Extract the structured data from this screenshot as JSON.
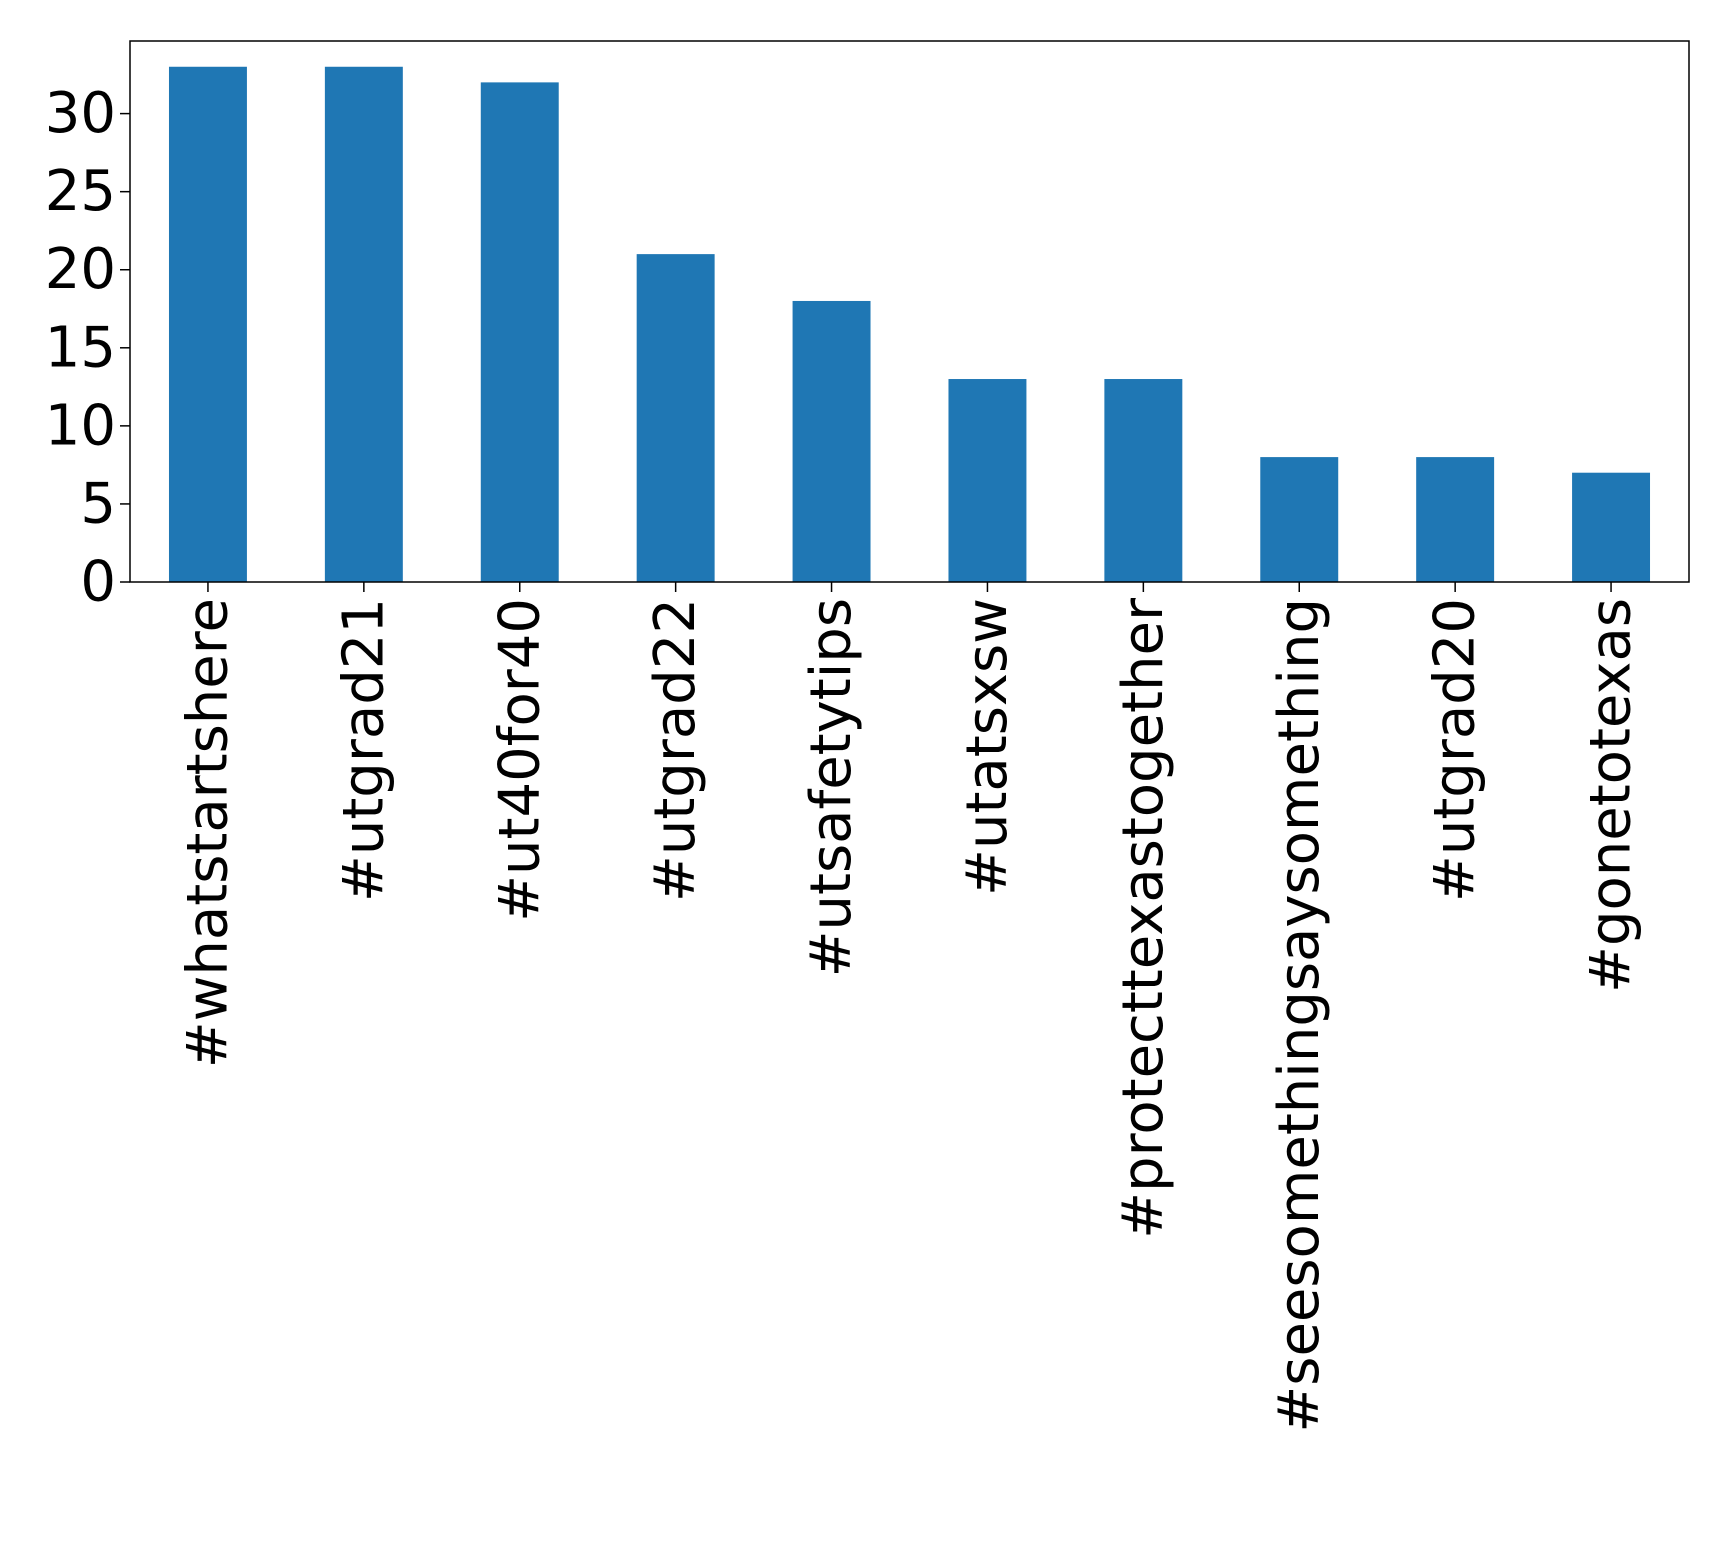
{
  "chart_data": {
    "type": "bar",
    "title": "",
    "xlabel": "",
    "ylabel": "",
    "categories": [
      "#whatstartshere",
      "#utgrad21",
      "#ut40for40",
      "#utgrad22",
      "#utsafetytips",
      "#utatsxsw",
      "#protecttexastogether",
      "#seesomethingsaysomething",
      "#utgrad20",
      "#gonetotexas"
    ],
    "values": [
      33,
      33,
      32,
      21,
      18,
      13,
      13,
      8,
      8,
      7
    ],
    "ylim": [
      0,
      34.65
    ],
    "yticks": [
      0,
      5,
      10,
      15,
      20,
      25,
      30
    ],
    "grid": false,
    "legend": "none",
    "bar_color": "#1f77b4",
    "axis_color": "#000000"
  }
}
